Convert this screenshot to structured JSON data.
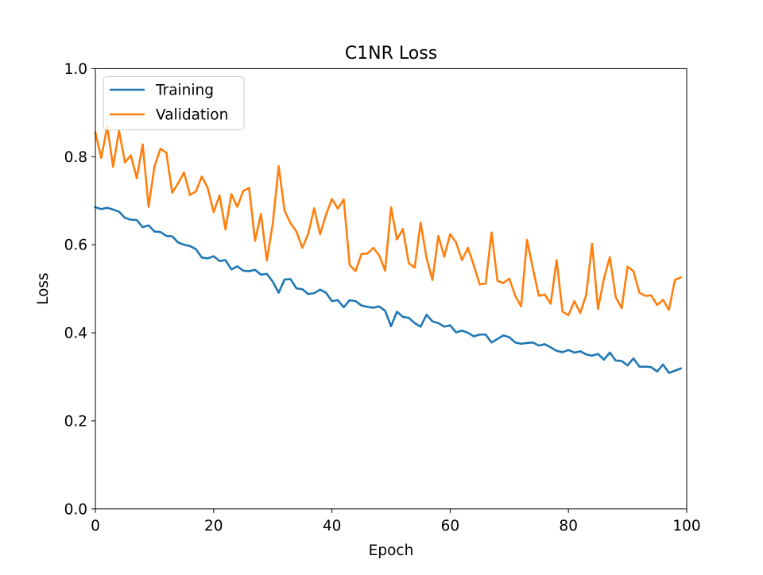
{
  "chart_data": {
    "type": "line",
    "title": "C1NR Loss",
    "xlabel": "Epoch",
    "ylabel": "Loss",
    "xlim": [
      0,
      100
    ],
    "ylim": [
      0.0,
      1.0
    ],
    "xticks": [
      "0",
      "20",
      "40",
      "60",
      "80",
      "100"
    ],
    "yticks": [
      "0.0",
      "0.2",
      "0.4",
      "0.6",
      "0.8",
      "1.0"
    ],
    "grid": false,
    "legend_position": "top-left",
    "x": [
      0,
      1,
      2,
      3,
      4,
      5,
      6,
      7,
      8,
      9,
      10,
      11,
      12,
      13,
      14,
      15,
      16,
      17,
      18,
      19,
      20,
      21,
      22,
      23,
      24,
      25,
      26,
      27,
      28,
      29,
      30,
      31,
      32,
      33,
      34,
      35,
      36,
      37,
      38,
      39,
      40,
      41,
      42,
      43,
      44,
      45,
      46,
      47,
      48,
      49,
      50,
      51,
      52,
      53,
      54,
      55,
      56,
      57,
      58,
      59,
      60,
      61,
      62,
      63,
      64,
      65,
      66,
      67,
      68,
      69,
      70,
      71,
      72,
      73,
      74,
      75,
      76,
      77,
      78,
      79,
      80,
      81,
      82,
      83,
      84,
      85,
      86,
      87,
      88,
      89,
      90,
      91,
      92,
      93,
      94,
      95,
      96,
      97,
      98,
      99
    ],
    "series": [
      {
        "name": "Training",
        "color": "#1f77b4",
        "values": [
          0.685,
          0.681,
          0.684,
          0.68,
          0.675,
          0.661,
          0.657,
          0.656,
          0.64,
          0.644,
          0.63,
          0.629,
          0.62,
          0.619,
          0.605,
          0.6,
          0.597,
          0.59,
          0.571,
          0.569,
          0.574,
          0.563,
          0.565,
          0.544,
          0.551,
          0.541,
          0.54,
          0.543,
          0.532,
          0.534,
          0.516,
          0.491,
          0.521,
          0.522,
          0.501,
          0.499,
          0.488,
          0.49,
          0.498,
          0.491,
          0.472,
          0.474,
          0.458,
          0.474,
          0.472,
          0.462,
          0.459,
          0.457,
          0.46,
          0.45,
          0.415,
          0.448,
          0.436,
          0.434,
          0.422,
          0.414,
          0.441,
          0.426,
          0.422,
          0.414,
          0.417,
          0.401,
          0.405,
          0.4,
          0.392,
          0.396,
          0.396,
          0.378,
          0.386,
          0.394,
          0.39,
          0.378,
          0.375,
          0.377,
          0.378,
          0.371,
          0.374,
          0.367,
          0.359,
          0.356,
          0.361,
          0.355,
          0.358,
          0.351,
          0.348,
          0.352,
          0.339,
          0.355,
          0.337,
          0.336,
          0.326,
          0.342,
          0.323,
          0.323,
          0.322,
          0.312,
          0.328,
          0.309,
          0.314,
          0.319
        ]
      },
      {
        "name": "Validation",
        "color": "#ff7f0e",
        "values": [
          0.855,
          0.797,
          0.869,
          0.777,
          0.859,
          0.787,
          0.803,
          0.751,
          0.828,
          0.686,
          0.778,
          0.818,
          0.809,
          0.718,
          0.74,
          0.764,
          0.713,
          0.721,
          0.755,
          0.729,
          0.674,
          0.712,
          0.635,
          0.715,
          0.686,
          0.722,
          0.729,
          0.609,
          0.67,
          0.564,
          0.648,
          0.778,
          0.677,
          0.649,
          0.63,
          0.593,
          0.625,
          0.683,
          0.624,
          0.668,
          0.704,
          0.682,
          0.703,
          0.554,
          0.54,
          0.579,
          0.58,
          0.593,
          0.576,
          0.541,
          0.685,
          0.612,
          0.636,
          0.558,
          0.548,
          0.65,
          0.57,
          0.52,
          0.62,
          0.573,
          0.624,
          0.605,
          0.565,
          0.593,
          0.553,
          0.51,
          0.512,
          0.628,
          0.518,
          0.513,
          0.523,
          0.484,
          0.46,
          0.611,
          0.545,
          0.484,
          0.487,
          0.466,
          0.565,
          0.448,
          0.44,
          0.472,
          0.445,
          0.486,
          0.602,
          0.454,
          0.523,
          0.572,
          0.481,
          0.456,
          0.55,
          0.54,
          0.491,
          0.484,
          0.485,
          0.463,
          0.475,
          0.452,
          0.52,
          0.526
        ]
      }
    ]
  }
}
